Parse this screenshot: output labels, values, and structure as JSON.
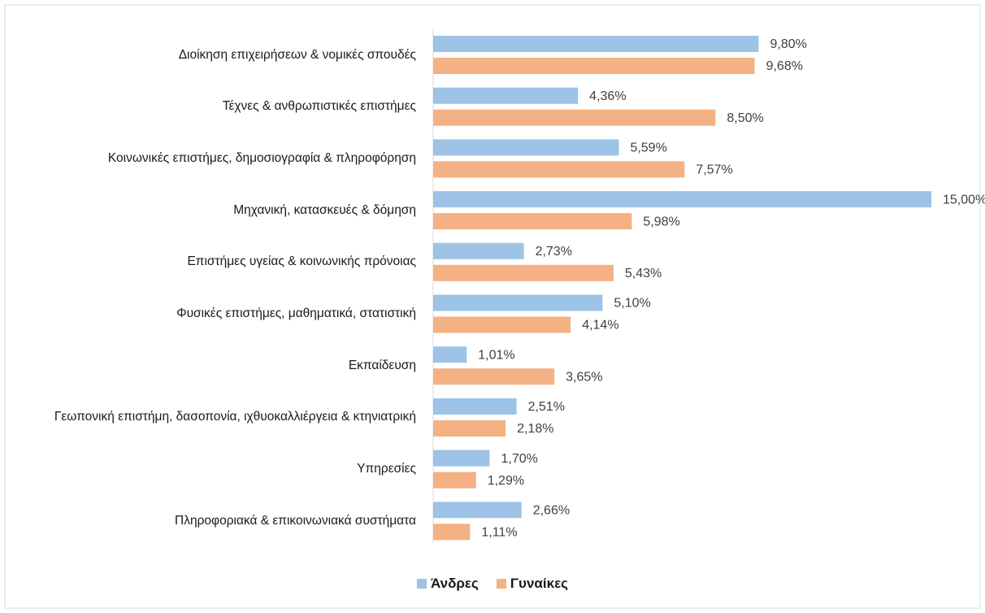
{
  "chart_data": {
    "type": "bar",
    "orientation": "horizontal",
    "categories": [
      "Διοίκηση επιχειρήσεων & νομικές σπουδές",
      "Τέχνες & ανθρωπιστικές επιστήμες",
      "Κοινωνικές επιστήμες, δημοσιογραφία & πληροφόρηση",
      "Μηχανική, κατασκευές & δόμηση",
      "Επιστήμες υγείας & κοινωνικής πρόνοιας",
      "Φυσικές επιστήμες, μαθηματικά, στατιστική",
      "Εκπαίδευση",
      "Γεωπονική επιστήμη, δασοπονία, ιχθυοκαλλιέργεια & κτηνιατρική",
      "Υπηρεσίες",
      "Πληροφοριακά & επικοινωνιακά συστήματα"
    ],
    "series": [
      {
        "name": "Άνδρες",
        "color": "#9dc3e6",
        "values": [
          9.8,
          4.36,
          5.59,
          15.0,
          2.73,
          5.1,
          1.01,
          2.51,
          1.7,
          2.66
        ],
        "value_labels": [
          "9,80%",
          "4,36%",
          "5,59%",
          "15,00%",
          "2,73%",
          "5,10%",
          "1,01%",
          "2,51%",
          "1,70%",
          "2,66%"
        ]
      },
      {
        "name": "Γυναίκες",
        "color": "#f4b183",
        "values": [
          9.68,
          8.5,
          7.57,
          5.98,
          5.43,
          4.14,
          3.65,
          2.18,
          1.29,
          1.11
        ],
        "value_labels": [
          "9,68%",
          "8,50%",
          "7,57%",
          "5,98%",
          "5,43%",
          "4,14%",
          "3,65%",
          "2,18%",
          "1,29%",
          "1,11%"
        ]
      }
    ],
    "legend": "bottom"
  }
}
